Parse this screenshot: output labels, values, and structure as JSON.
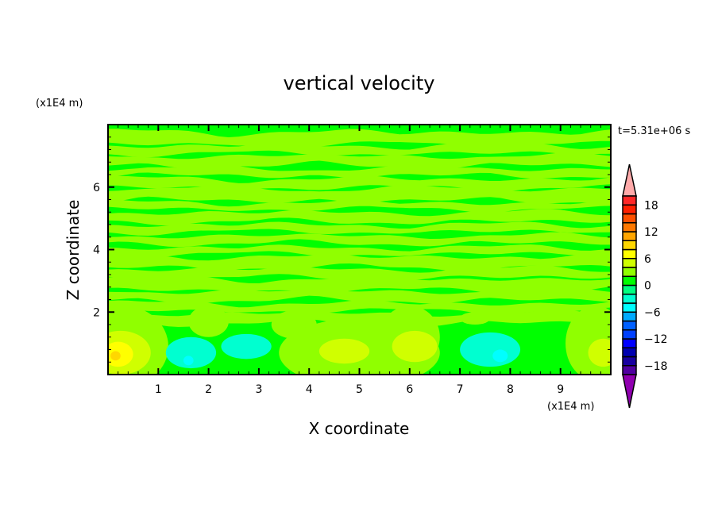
{
  "chart_data": {
    "type": "heatmap",
    "subtype": "filled-contour",
    "title": "vertical velocity",
    "xlabel": "X coordinate",
    "ylabel": "Z coordinate",
    "x_unit": "(x1E4 m)",
    "y_unit": "(x1E4 m)",
    "time_label": "t=5.31e+06 s",
    "xlim": [
      0,
      10
    ],
    "ylim": [
      0,
      8
    ],
    "x_ticks": [
      "1",
      "2",
      "3",
      "4",
      "5",
      "6",
      "7",
      "8",
      "9"
    ],
    "x_tick_values": [
      1,
      2,
      3,
      4,
      5,
      6,
      7,
      8,
      9
    ],
    "y_ticks": [
      "2",
      "4",
      "6"
    ],
    "y_tick_values": [
      2,
      4,
      6
    ],
    "colorbar": {
      "levels": [
        -20,
        -18,
        -16,
        -14,
        -12,
        -10,
        -8,
        -6,
        -4,
        -2,
        0,
        2,
        4,
        6,
        8,
        10,
        12,
        14,
        16,
        18,
        20
      ],
      "colors": [
        "#5000a0",
        "#1800a0",
        "#0000b0",
        "#0000ff",
        "#0040ff",
        "#0060ff",
        "#00aaff",
        "#00ffff",
        "#00ffd0",
        "#00ff80",
        "#00ff00",
        "#90ff00",
        "#d0ff00",
        "#ffff00",
        "#ffd700",
        "#ffa500",
        "#ff7800",
        "#ff5000",
        "#ff2000",
        "#ff2828"
      ],
      "over_color": "#ffaaaa",
      "under_color": "#9000b0",
      "tick_labels": [
        "18",
        "12",
        "6",
        "0",
        "-6",
        "-12",
        "-18"
      ],
      "tick_values": [
        18,
        12,
        6,
        0,
        -6,
        -12,
        -18
      ]
    },
    "background_level": [
      0,
      2
    ],
    "upper_layer": {
      "z_range": [
        1.8,
        8
      ],
      "pattern": "horizontal wavy bands alternating between 0..2 and 2..4"
    },
    "regions": [
      {
        "x": 0.3,
        "z": 0.9,
        "rx": 0.9,
        "rz": 1.3,
        "level": [
          2,
          4
        ]
      },
      {
        "x": 0.25,
        "z": 0.7,
        "rx": 0.6,
        "rz": 0.7,
        "level": [
          4,
          6
        ]
      },
      {
        "x": 0.2,
        "z": 0.65,
        "rx": 0.3,
        "rz": 0.4,
        "level": [
          6,
          8
        ]
      },
      {
        "x": 0.15,
        "z": 0.6,
        "rx": 0.1,
        "rz": 0.15,
        "level": [
          8,
          10
        ]
      },
      {
        "x": 2.0,
        "z": 1.7,
        "rx": 0.4,
        "rz": 0.5,
        "level": [
          2,
          4
        ]
      },
      {
        "x": 1.65,
        "z": 0.7,
        "rx": 0.5,
        "rz": 0.5,
        "level": [
          -4,
          -2
        ]
      },
      {
        "x": 1.6,
        "z": 0.45,
        "rx": 0.1,
        "rz": 0.15,
        "level": [
          -6,
          -4
        ]
      },
      {
        "x": 2.75,
        "z": 0.9,
        "rx": 0.5,
        "rz": 0.4,
        "level": [
          -4,
          -2
        ]
      },
      {
        "x": 3.7,
        "z": 1.6,
        "rx": 0.45,
        "rz": 0.45,
        "level": [
          2,
          4
        ]
      },
      {
        "x": 5.0,
        "z": 0.7,
        "rx": 1.6,
        "rz": 1.1,
        "level": [
          2,
          4
        ]
      },
      {
        "x": 6.0,
        "z": 1.2,
        "rx": 0.6,
        "rz": 1.0,
        "level": [
          2,
          4
        ]
      },
      {
        "x": 4.7,
        "z": 0.75,
        "rx": 0.5,
        "rz": 0.4,
        "level": [
          4,
          6
        ]
      },
      {
        "x": 6.1,
        "z": 0.9,
        "rx": 0.45,
        "rz": 0.5,
        "level": [
          4,
          6
        ]
      },
      {
        "x": 7.6,
        "z": 0.8,
        "rx": 0.6,
        "rz": 0.55,
        "level": [
          -4,
          -2
        ]
      },
      {
        "x": 7.8,
        "z": 0.6,
        "rx": 0.15,
        "rz": 0.2,
        "level": [
          -6,
          -4
        ]
      },
      {
        "x": 7.3,
        "z": 1.8,
        "rx": 0.3,
        "rz": 0.2,
        "level": [
          2,
          4
        ]
      },
      {
        "x": 9.7,
        "z": 1.0,
        "rx": 0.6,
        "rz": 1.2,
        "level": [
          2,
          4
        ]
      },
      {
        "x": 9.85,
        "z": 0.7,
        "rx": 0.3,
        "rz": 0.45,
        "level": [
          4,
          6
        ]
      }
    ]
  }
}
